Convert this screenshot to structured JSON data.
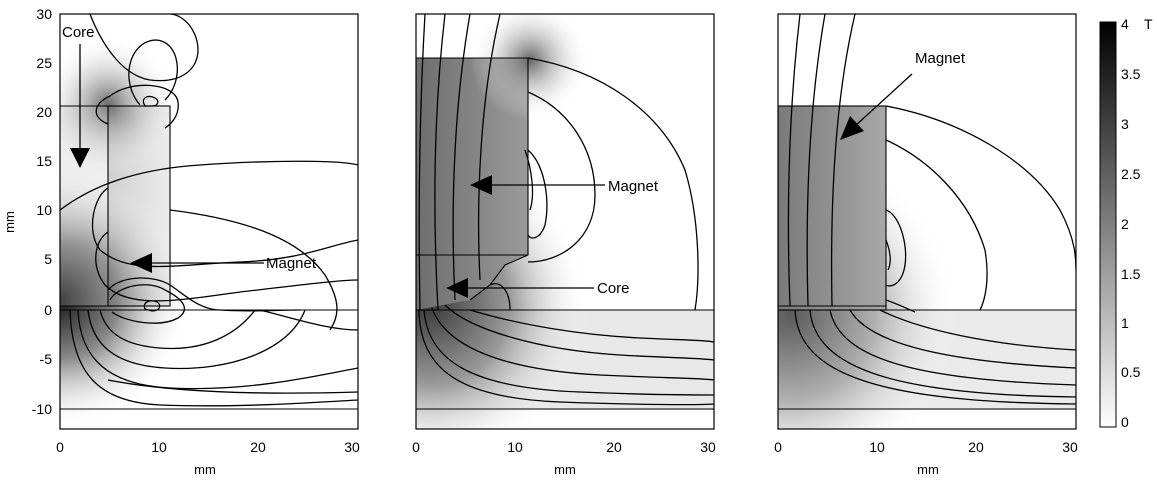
{
  "panels": [
    {
      "x_label": "mm",
      "y_label": "mm",
      "x_ticks": [
        "0",
        "10",
        "20",
        "30"
      ],
      "y_ticks": [
        "30",
        "25",
        "20",
        "15",
        "10",
        "5",
        "0",
        "-5",
        "-10"
      ],
      "annotations": [
        "Core",
        "Magnet"
      ]
    },
    {
      "x_label": "mm",
      "x_ticks": [
        "0",
        "10",
        "20",
        "30"
      ],
      "annotations": [
        "Magnet",
        "Core"
      ]
    },
    {
      "x_label": "mm",
      "x_ticks": [
        "0",
        "10",
        "20",
        "30"
      ],
      "annotations": [
        "Magnet"
      ]
    }
  ],
  "colorbar": {
    "unit": "T",
    "ticks": [
      "4",
      "3.5",
      "3",
      "2.5",
      "2",
      "1.5",
      "1",
      "0.5",
      "0"
    ],
    "range": [
      0,
      4
    ],
    "colors": {
      "min": "#ffffff",
      "max": "#000000"
    }
  },
  "axis_ranges": {
    "x_mm": [
      0,
      30
    ],
    "y_mm": [
      -12,
      30
    ]
  }
}
